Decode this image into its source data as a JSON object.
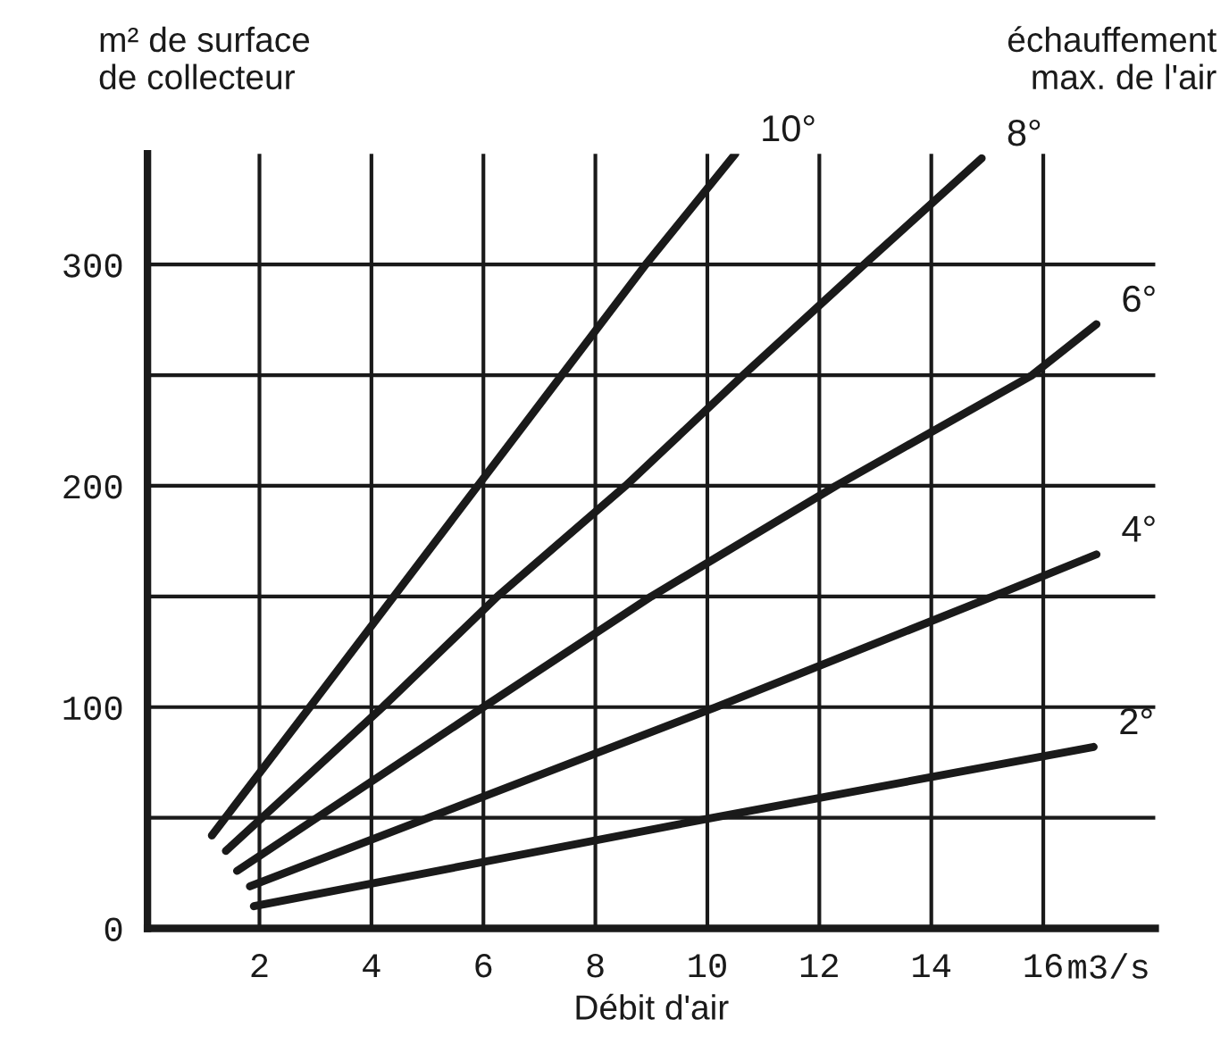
{
  "chart_data": {
    "type": "line",
    "ylabel": "m² de surface\nde collecteur",
    "xlabel": "Débit d'air",
    "legend_title": "échauffement\nmax. de l'air",
    "annotations": [
      "m3/s"
    ],
    "xlim": [
      0,
      18
    ],
    "ylim": [
      0,
      350
    ],
    "xticks": [
      2,
      4,
      6,
      8,
      10,
      12,
      14,
      16
    ],
    "yticks": [
      0,
      {
        "value": 50,
        "label": null
      },
      100,
      {
        "value": 150,
        "label": null
      },
      200,
      {
        "value": 250,
        "label": null
      },
      300
    ],
    "grid": true,
    "legend": false,
    "marker": "none",
    "line_style": "solid",
    "series": [
      {
        "name": "10°",
        "color": "#1a1a1a",
        "x": [
          1.15,
          2.9,
          4.4,
          5.9,
          7.4,
          8.9,
          10.5
        ],
        "values": [
          42,
          100,
          150,
          200,
          250,
          300,
          350
        ]
      },
      {
        "name": "8°",
        "color": "#1a1a1a",
        "x": [
          1.4,
          4.2,
          6.25,
          8.54,
          10.64,
          12.8,
          14.9
        ],
        "values": [
          35,
          100,
          150,
          200,
          250,
          300,
          348
        ]
      },
      {
        "name": "6°",
        "color": "#1a1a1a",
        "x": [
          1.6,
          6.0,
          9.0,
          12.3,
          15.8,
          16.95
        ],
        "values": [
          26,
          100,
          150,
          200,
          250,
          273
        ]
      },
      {
        "name": "4°",
        "color": "#1a1a1a",
        "x": [
          1.83,
          10.16,
          15.1,
          16.95
        ],
        "values": [
          19,
          100,
          150,
          169
        ]
      },
      {
        "name": "2°",
        "color": "#1a1a1a",
        "x": [
          1.9,
          10.1,
          16.9
        ],
        "values": [
          10,
          50,
          82
        ]
      }
    ]
  }
}
